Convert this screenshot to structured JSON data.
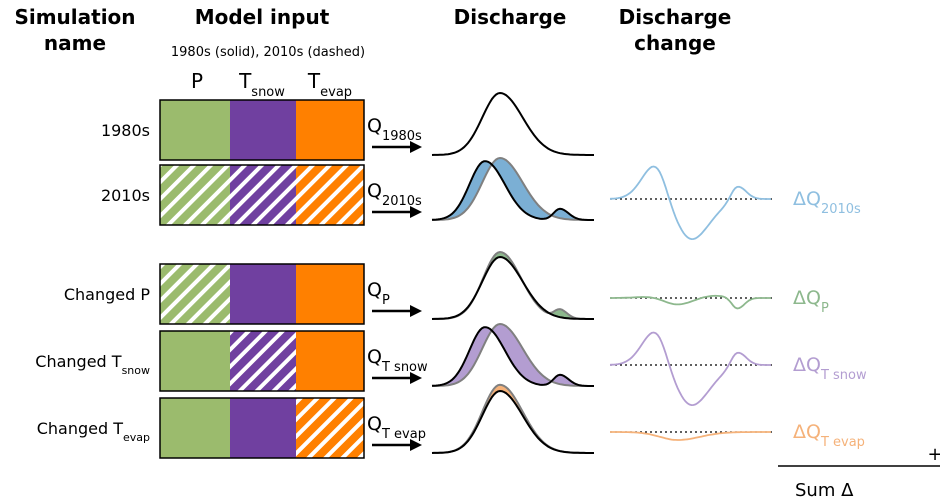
{
  "headers": {
    "simulation_name": [
      "Simulation",
      "name"
    ],
    "model_input": "Model input",
    "discharge": "Discharge",
    "discharge_change": [
      "Discharge",
      "change"
    ]
  },
  "model_input_note": "1980s (solid), 2010s (dashed)",
  "inputs": [
    {
      "text": "P"
    },
    {
      "text": "T",
      "sub": "snow"
    },
    {
      "text": "T",
      "sub": "evap"
    }
  ],
  "rows": [
    {
      "name": {
        "text": "1980s"
      },
      "q": {
        "text": "Q",
        "sub": "1980s"
      }
    },
    {
      "name": {
        "text": "2010s"
      },
      "q": {
        "text": "Q",
        "sub": "2010s"
      },
      "delta": {
        "text": "ΔQ",
        "sub": "2010s"
      }
    },
    {
      "name": {
        "text": "Changed P"
      },
      "q": {
        "text": "Q",
        "sub": "P"
      },
      "delta": {
        "text": "ΔQ",
        "sub": "P"
      }
    },
    {
      "name": {
        "text": "Changed T",
        "sub": "snow"
      },
      "q": {
        "text": "Q",
        "sub": "T snow"
      },
      "delta": {
        "text": "ΔQ",
        "sub": "T snow"
      }
    },
    {
      "name": {
        "text": "Changed T",
        "sub": "evap"
      },
      "q": {
        "text": "Q",
        "sub": "T evap"
      },
      "delta": {
        "text": "ΔQ",
        "sub": "T evap"
      }
    }
  ],
  "sum": {
    "plus": "+",
    "label": "Sum Δ"
  }
}
